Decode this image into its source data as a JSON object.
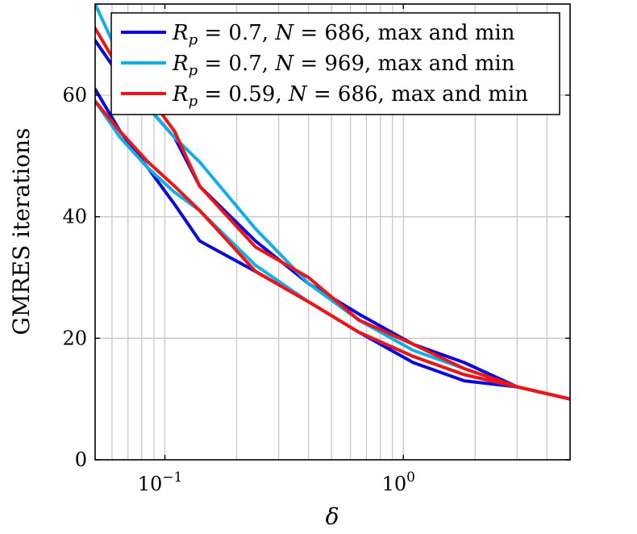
{
  "chart_data": {
    "type": "line",
    "xlabel": "δ",
    "ylabel": "GMRES iterations",
    "x_scale": "log",
    "xlim": [
      0.051,
      5.0
    ],
    "ylim": [
      0,
      75
    ],
    "grid": true,
    "legend_position": "top-right",
    "x_ticks": [
      {
        "value": 0.1,
        "base": "10",
        "exp": "−1"
      },
      {
        "value": 1,
        "base": "10",
        "exp": "0"
      }
    ],
    "y_ticks": [
      0,
      20,
      40,
      60
    ],
    "series": [
      {
        "name": "R_p = 0.7, N = 686, max and min",
        "label_parts": {
          "var": "R",
          "sub": "p",
          "eq1": " = 0.7, ",
          "var2": "N",
          "eq2": " = 686, max and min"
        },
        "color": "#0a0adc",
        "lines": [
          {
            "x": [
              0.051,
              0.065,
              0.085,
              0.11,
              0.14,
              0.24,
              0.4,
              0.65,
              1.1,
              1.8,
              3.0,
              5.0
            ],
            "y": [
              69,
              63,
              58,
              53,
              45,
              36,
              29,
              24,
              19,
              16,
              12,
              10
            ]
          },
          {
            "x": [
              0.051,
              0.065,
              0.085,
              0.11,
              0.14,
              0.24,
              0.4,
              0.65,
              1.1,
              1.8,
              3.0,
              5.0
            ],
            "y": [
              61,
              54,
              48,
              42,
              36,
              31,
              26,
              21,
              16,
              13,
              12,
              10
            ]
          }
        ]
      },
      {
        "name": "R_p = 0.7, N = 969, max and min",
        "label_parts": {
          "var": "R",
          "sub": "p",
          "eq1": " = 0.7, ",
          "var2": "N",
          "eq2": " = 969, max and min"
        },
        "color": "#14aee6",
        "lines": [
          {
            "x": [
              0.051,
              0.065,
              0.085,
              0.11,
              0.14,
              0.24,
              0.4,
              0.65,
              1.1,
              1.8,
              3.0,
              5.0
            ],
            "y": [
              75,
              66,
              58,
              53,
              49,
              38,
              29,
              23,
              18,
              15,
              12,
              10
            ]
          },
          {
            "x": [
              0.051,
              0.065,
              0.085,
              0.11,
              0.14,
              0.24,
              0.4,
              0.65,
              1.1,
              1.8,
              3.0,
              5.0
            ],
            "y": [
              59,
              53,
              48,
              44,
              41,
              32,
              26,
              21,
              17,
              14,
              12,
              10
            ]
          }
        ]
      },
      {
        "name": "R_p = 0.59, N = 686, max and min",
        "label_parts": {
          "var": "R",
          "sub": "p",
          "eq1": " = 0.59, ",
          "var2": "N",
          "eq2": " = 686, max and min"
        },
        "color": "#f01414",
        "lines": [
          {
            "x": [
              0.051,
              0.065,
              0.085,
              0.11,
              0.14,
              0.24,
              0.4,
              0.65,
              1.1,
              1.8,
              3.0,
              5.0
            ],
            "y": [
              71,
              64,
              60,
              54,
              45,
              35,
              30,
              23,
              19,
              15,
              12,
              10
            ]
          },
          {
            "x": [
              0.051,
              0.065,
              0.085,
              0.11,
              0.14,
              0.24,
              0.4,
              0.65,
              1.1,
              1.8,
              3.0,
              5.0
            ],
            "y": [
              59,
              54,
              49,
              45,
              41,
              31,
              26,
              21,
              17,
              14,
              12,
              10
            ]
          }
        ]
      }
    ]
  }
}
